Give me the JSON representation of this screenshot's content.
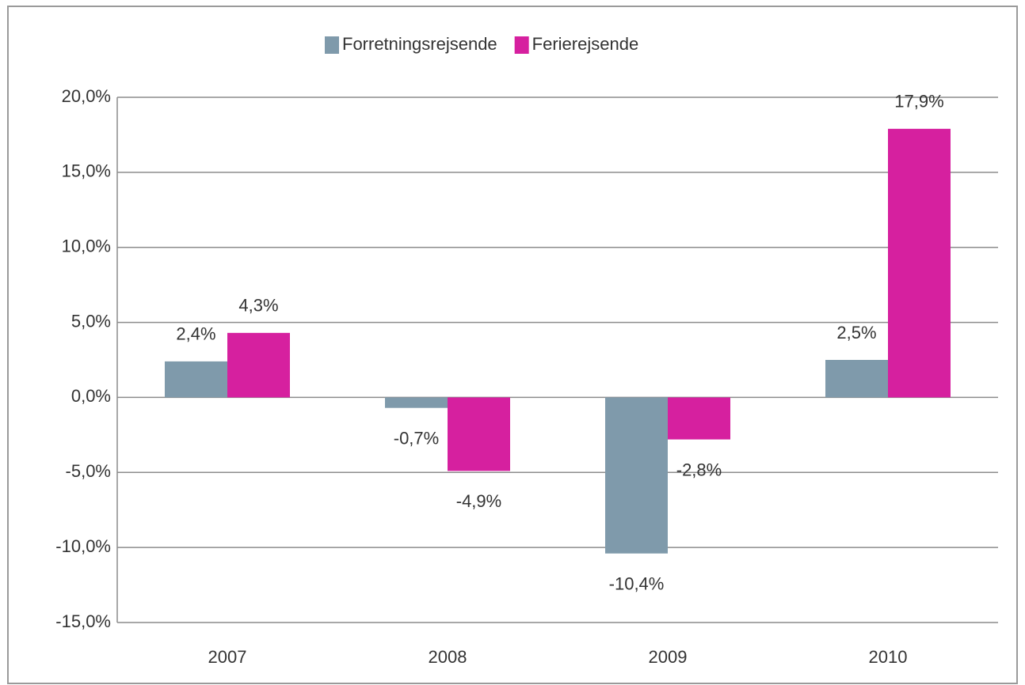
{
  "chart_data": {
    "type": "bar",
    "categories": [
      "2007",
      "2008",
      "2009",
      "2010"
    ],
    "series": [
      {
        "name": "Forretningsrejsende",
        "color": "#7f9aab",
        "values": [
          2.4,
          -0.7,
          -10.4,
          2.5
        ],
        "value_labels": [
          "2,4%",
          "-0,7%",
          "-10,4%",
          "2,5%"
        ]
      },
      {
        "name": "Ferierejsende",
        "color": "#d6209f",
        "values": [
          4.3,
          -4.9,
          -2.8,
          17.9
        ],
        "value_labels": [
          "4,3%",
          "-4,9%",
          "-2,8%",
          "17,9%"
        ]
      }
    ],
    "ylim": [
      -15,
      20
    ],
    "yticks": [
      {
        "value": -15,
        "label": "-15,0%"
      },
      {
        "value": -10,
        "label": "-10,0%"
      },
      {
        "value": -5,
        "label": "-5,0%"
      },
      {
        "value": 0,
        "label": "0,0%"
      },
      {
        "value": 5,
        "label": "5,0%"
      },
      {
        "value": 10,
        "label": "10,0%"
      },
      {
        "value": 15,
        "label": "15,0%"
      },
      {
        "value": 20,
        "label": "20,0%"
      }
    ],
    "grid": true,
    "legend": "top"
  }
}
